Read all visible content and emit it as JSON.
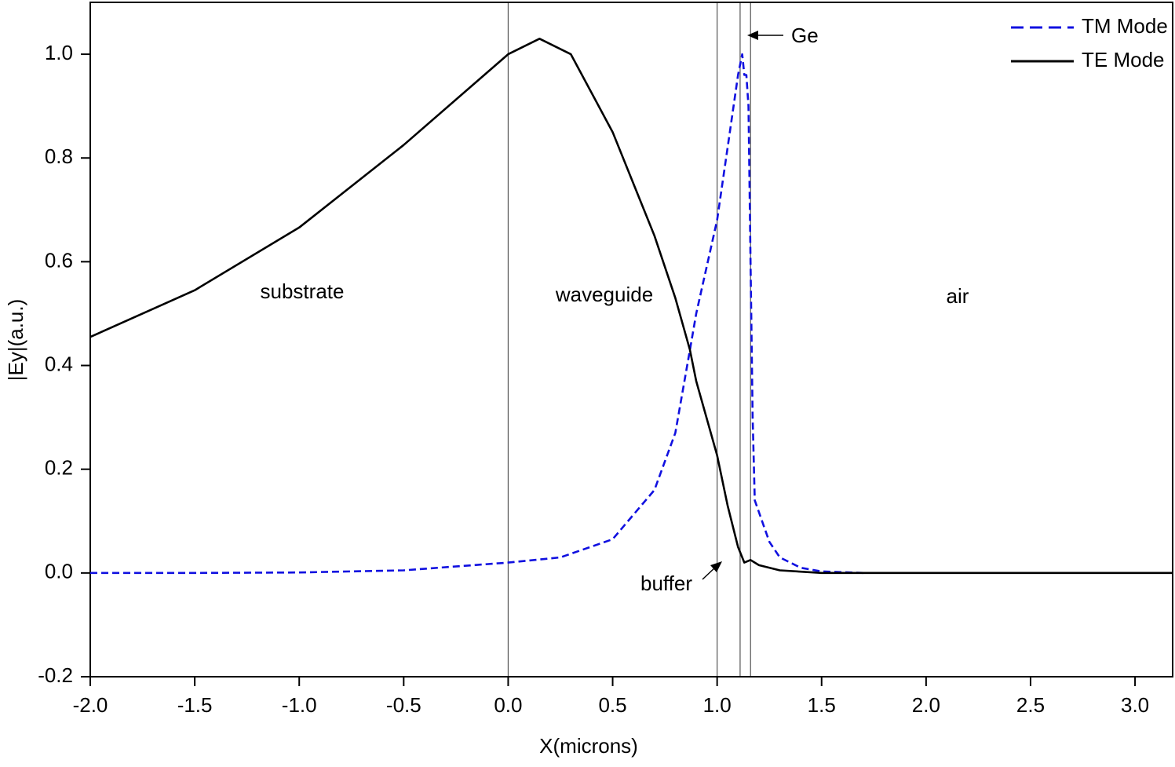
{
  "chart_data": {
    "type": "line",
    "xlabel": "X(microns)",
    "ylabel": "|Ey|(a.u.)",
    "xlim": [
      -2.0,
      3.18
    ],
    "ylim": [
      -0.2,
      1.1
    ],
    "xticks": [
      {
        "value": -2.0,
        "label": "-2.0"
      },
      {
        "value": -1.5,
        "label": "-1.5"
      },
      {
        "value": -1.0,
        "label": "-1.0"
      },
      {
        "value": -0.5,
        "label": "-0.5"
      },
      {
        "value": 0.0,
        "label": "0.0"
      },
      {
        "value": 0.5,
        "label": "0.5"
      },
      {
        "value": 1.0,
        "label": "1.0"
      },
      {
        "value": 1.5,
        "label": "1.5"
      },
      {
        "value": 2.0,
        "label": "2.0"
      },
      {
        "value": 2.5,
        "label": "2.5"
      },
      {
        "value": 3.0,
        "label": "3.0"
      }
    ],
    "yticks": [
      {
        "value": -0.2,
        "label": "-0.2"
      },
      {
        "value": 0.0,
        "label": "0.0"
      },
      {
        "value": 0.2,
        "label": "0.2"
      },
      {
        "value": 0.4,
        "label": "0.4"
      },
      {
        "value": 0.6,
        "label": "0.6"
      },
      {
        "value": 0.8,
        "label": "0.8"
      },
      {
        "value": 1.0,
        "label": "1.0"
      }
    ],
    "boundaries": [
      0.0,
      1.0,
      1.11,
      1.16
    ],
    "annotations": [
      "substrate",
      "waveguide",
      "air",
      "buffer",
      "Ge"
    ],
    "series": [
      {
        "name": "TM Mode",
        "color": "#1010e0",
        "dash": true,
        "x": [
          -2.0,
          -1.5,
          -1.0,
          -0.5,
          0.0,
          0.25,
          0.5,
          0.7,
          0.8,
          0.87,
          0.9,
          1.0,
          1.05,
          1.1,
          1.12,
          1.13,
          1.14,
          1.15,
          1.16,
          1.17,
          1.18,
          1.25,
          1.3,
          1.4,
          1.5,
          1.7
        ],
        "values": [
          0.0,
          0.0,
          0.001,
          0.005,
          0.02,
          0.03,
          0.065,
          0.16,
          0.27,
          0.43,
          0.5,
          0.68,
          0.82,
          0.96,
          1.0,
          0.96,
          0.96,
          0.9,
          0.6,
          0.3,
          0.14,
          0.06,
          0.03,
          0.01,
          0.003,
          0.0
        ]
      },
      {
        "name": "TE Mode",
        "color": "#000000",
        "dash": false,
        "x": [
          -2.0,
          -1.5,
          -1.0,
          -0.5,
          0.0,
          0.15,
          0.3,
          0.5,
          0.7,
          0.8,
          0.87,
          0.9,
          1.0,
          1.05,
          1.1,
          1.13,
          1.16,
          1.2,
          1.3,
          1.5,
          2.0,
          3.18
        ],
        "values": [
          0.455,
          0.545,
          0.666,
          0.825,
          1.0,
          1.03,
          1.0,
          0.85,
          0.65,
          0.53,
          0.43,
          0.37,
          0.227,
          0.13,
          0.05,
          0.02,
          0.025,
          0.015,
          0.005,
          0.0,
          0.0,
          0.0
        ]
      }
    ]
  }
}
